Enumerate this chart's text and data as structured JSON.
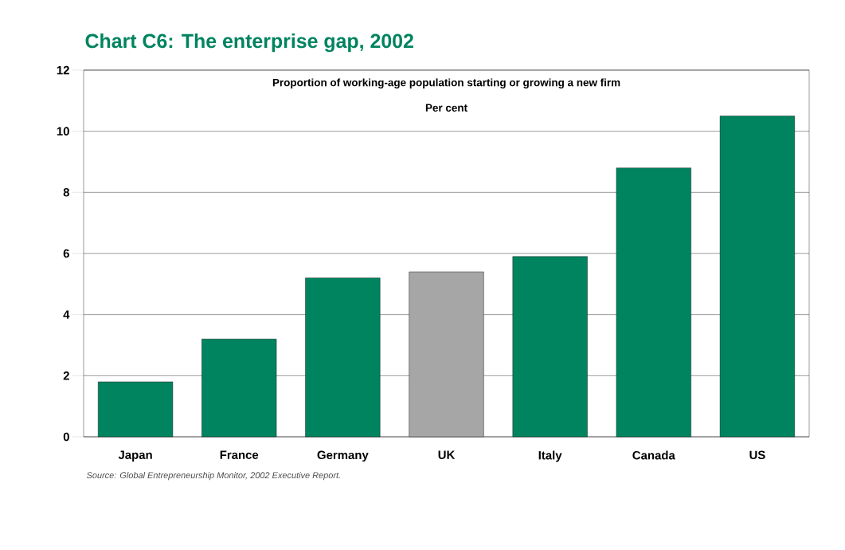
{
  "chart_data": {
    "type": "bar",
    "title": "Chart C6: The enterprise gap, 2002",
    "subtitle": "Proportion of working-age population starting or growing a new firm",
    "ylabel": "Per cent",
    "categories": [
      "Japan",
      "France",
      "Germany",
      "UK",
      "Italy",
      "Canada",
      "US"
    ],
    "values": [
      1.8,
      3.2,
      5.2,
      5.4,
      5.9,
      8.8,
      10.5
    ],
    "colors": [
      "#00845f",
      "#00845f",
      "#00845f",
      "#a6a6a6",
      "#00845f",
      "#00845f",
      "#00845f"
    ],
    "ylim": [
      0,
      12
    ],
    "yticks": [
      0,
      2,
      4,
      6,
      8,
      10,
      12
    ],
    "grid": "y",
    "annotations": [
      "Source: Global Entrepreneurship Monitor, 2002 Executive Report."
    ]
  }
}
